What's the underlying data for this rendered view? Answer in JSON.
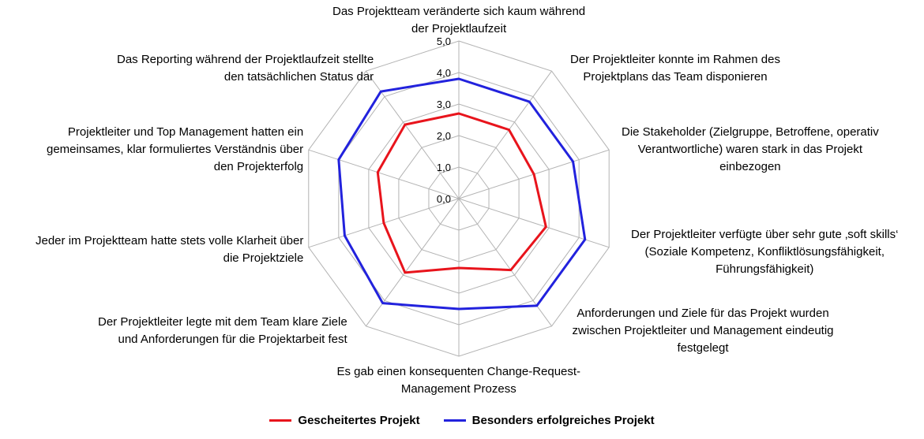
{
  "chart_data": {
    "type": "radar",
    "ticks": [
      "0,0",
      "1,0",
      "2,0",
      "3,0",
      "4,0",
      "5,0"
    ],
    "rlim": [
      0,
      5
    ],
    "categories": [
      "Das Projektteam veränderte sich kaum während der Projektlaufzeit",
      "Der Projektleiter konnte im Rahmen des Projektplans das Team disponieren",
      "Die Stakeholder (Zielgruppe, Betroffene, operativ Verantwortliche) waren stark in das Projekt einbezogen",
      "Der Projektleiter verfügte über sehr gute ‚soft skills‘ (Soziale Kompetenz, Konfliktlösungsfähigkeit, Führungsfähigkeit)",
      "Anforderungen und Ziele für das Projekt wurden zwischen Projektleiter und Management eindeutig festgelegt",
      "Es gab einen konsequenten Change-Request-Management Prozess",
      "Der Projektleiter legte mit dem Team klare Ziele und Anforderungen für die Projektarbeit fest",
      "Jeder im Projektteam hatte stets volle Klarheit über die Projektziele",
      "Projektleiter und Top Management hatten ein gemeinsames, klar formuliertes Verständnis über den Projekterfolg",
      "Das Reporting während der Projektlaufzeit stellte den tatsächlichen Status dar"
    ],
    "label_lines": [
      [
        "Das Projektteam veränderte sich kaum während",
        "der Projektlaufzeit"
      ],
      [
        "Der Projektleiter konnte im Rahmen des",
        "Projektplans das Team disponieren"
      ],
      [
        "Die Stakeholder (Zielgruppe, Betroffene, operativ",
        "Verantwortliche) waren stark in das Projekt",
        "einbezogen"
      ],
      [
        "Der Projektleiter verfügte über sehr gute ‚soft skills‘",
        "(Soziale Kompetenz, Konfliktlösungsfähigkeit,",
        "Führungsfähigkeit)"
      ],
      [
        "Anforderungen und Ziele für das Projekt wurden",
        "zwischen Projektleiter und Management eindeutig",
        "festgelegt"
      ],
      [
        "Es gab einen konsequenten Change-Request-",
        "Management Prozess"
      ],
      [
        "Der Projektleiter legte mit dem Team klare Ziele",
        "und Anforderungen für die Projektarbeit fest"
      ],
      [
        "Jeder im Projektteam hatte stets volle Klarheit über",
        "die Projektziele"
      ],
      [
        "Projektleiter und Top Management hatten ein",
        "gemeinsames, klar formuliertes Verständnis über",
        "den Projekterfolg"
      ],
      [
        "Das Reporting während der Projektlaufzeit stellte",
        "den tatsächlichen Status dar"
      ]
    ],
    "series": [
      {
        "name": "Gescheitertes Projekt",
        "color": "#e8141c",
        "values": [
          2.7,
          2.7,
          2.5,
          2.9,
          2.8,
          2.2,
          2.9,
          2.5,
          2.7,
          2.9
        ]
      },
      {
        "name": "Besonders erfolgreiches Projekt",
        "color": "#2222dd",
        "values": [
          3.8,
          3.8,
          3.8,
          4.2,
          4.2,
          3.5,
          4.1,
          3.8,
          4.0,
          4.2
        ]
      }
    ],
    "grid": true,
    "legend_position": "bottom"
  }
}
